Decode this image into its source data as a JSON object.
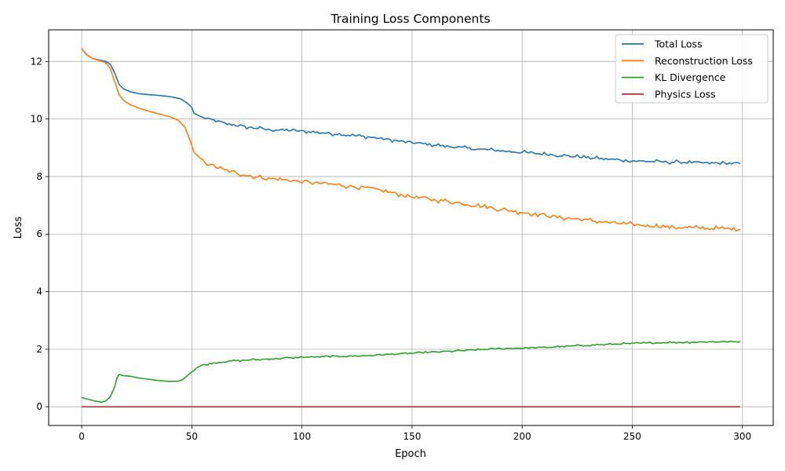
{
  "chart_data": {
    "type": "line",
    "title": "Training Loss Components",
    "xlabel": "Epoch",
    "ylabel": "Loss",
    "xlim": [
      -15,
      314
    ],
    "ylim": [
      -0.65,
      13.1
    ],
    "x_ticks": [
      0,
      50,
      100,
      150,
      200,
      250,
      300
    ],
    "y_ticks": [
      0,
      2,
      4,
      6,
      8,
      10,
      12
    ],
    "grid": true,
    "legend_position": "top-right",
    "x_range": [
      0,
      299
    ],
    "series": [
      {
        "name": "Total Loss",
        "color": "#1f77b4",
        "points": [
          [
            0,
            12.45
          ],
          [
            2,
            12.25
          ],
          [
            5,
            12.1
          ],
          [
            8,
            12.05
          ],
          [
            11,
            12.0
          ],
          [
            13,
            11.9
          ],
          [
            15,
            11.6
          ],
          [
            17,
            11.2
          ],
          [
            19,
            11.05
          ],
          [
            22,
            10.95
          ],
          [
            26,
            10.88
          ],
          [
            30,
            10.85
          ],
          [
            35,
            10.82
          ],
          [
            40,
            10.78
          ],
          [
            45,
            10.7
          ],
          [
            48,
            10.55
          ],
          [
            50,
            10.4
          ],
          [
            51,
            10.2
          ],
          [
            55,
            10.05
          ],
          [
            60,
            9.95
          ],
          [
            65,
            9.85
          ],
          [
            70,
            9.78
          ],
          [
            75,
            9.72
          ],
          [
            80,
            9.68
          ],
          [
            85,
            9.63
          ],
          [
            90,
            9.62
          ],
          [
            95,
            9.6
          ],
          [
            100,
            9.58
          ],
          [
            110,
            9.52
          ],
          [
            120,
            9.45
          ],
          [
            130,
            9.38
          ],
          [
            140,
            9.28
          ],
          [
            150,
            9.18
          ],
          [
            160,
            9.1
          ],
          [
            170,
            9.02
          ],
          [
            180,
            8.95
          ],
          [
            190,
            8.9
          ],
          [
            200,
            8.84
          ],
          [
            210,
            8.78
          ],
          [
            220,
            8.72
          ],
          [
            230,
            8.66
          ],
          [
            240,
            8.6
          ],
          [
            250,
            8.55
          ],
          [
            260,
            8.52
          ],
          [
            270,
            8.5
          ],
          [
            280,
            8.48
          ],
          [
            290,
            8.46
          ],
          [
            299,
            8.45
          ]
        ]
      },
      {
        "name": "Reconstruction Loss",
        "color": "#ff7f0e",
        "points": [
          [
            0,
            12.45
          ],
          [
            2,
            12.25
          ],
          [
            5,
            12.1
          ],
          [
            8,
            12.03
          ],
          [
            11,
            11.95
          ],
          [
            13,
            11.75
          ],
          [
            15,
            11.3
          ],
          [
            17,
            10.85
          ],
          [
            19,
            10.65
          ],
          [
            22,
            10.5
          ],
          [
            26,
            10.38
          ],
          [
            30,
            10.28
          ],
          [
            35,
            10.18
          ],
          [
            40,
            10.08
          ],
          [
            44,
            9.95
          ],
          [
            47,
            9.7
          ],
          [
            49,
            9.3
          ],
          [
            51,
            8.85
          ],
          [
            55,
            8.55
          ],
          [
            60,
            8.35
          ],
          [
            65,
            8.22
          ],
          [
            70,
            8.12
          ],
          [
            75,
            8.05
          ],
          [
            80,
            7.98
          ],
          [
            85,
            7.93
          ],
          [
            90,
            7.9
          ],
          [
            95,
            7.86
          ],
          [
            100,
            7.82
          ],
          [
            110,
            7.76
          ],
          [
            120,
            7.68
          ],
          [
            130,
            7.6
          ],
          [
            140,
            7.45
          ],
          [
            145,
            7.38
          ],
          [
            150,
            7.3
          ],
          [
            160,
            7.2
          ],
          [
            170,
            7.1
          ],
          [
            180,
            6.98
          ],
          [
            190,
            6.86
          ],
          [
            200,
            6.76
          ],
          [
            210,
            6.66
          ],
          [
            220,
            6.56
          ],
          [
            230,
            6.48
          ],
          [
            240,
            6.4
          ],
          [
            250,
            6.33
          ],
          [
            260,
            6.28
          ],
          [
            270,
            6.24
          ],
          [
            280,
            6.21
          ],
          [
            290,
            6.19
          ],
          [
            299,
            6.18
          ]
        ]
      },
      {
        "name": "KL Divergence",
        "color": "#2ca02c",
        "points": [
          [
            0,
            0.32
          ],
          [
            3,
            0.26
          ],
          [
            6,
            0.2
          ],
          [
            9,
            0.16
          ],
          [
            11,
            0.2
          ],
          [
            13,
            0.35
          ],
          [
            15,
            0.7
          ],
          [
            16,
            1.0
          ],
          [
            17,
            1.12
          ],
          [
            19,
            1.08
          ],
          [
            22,
            1.06
          ],
          [
            26,
            1.0
          ],
          [
            30,
            0.96
          ],
          [
            35,
            0.91
          ],
          [
            40,
            0.88
          ],
          [
            44,
            0.89
          ],
          [
            46,
            0.95
          ],
          [
            48,
            1.08
          ],
          [
            50,
            1.22
          ],
          [
            52,
            1.35
          ],
          [
            55,
            1.45
          ],
          [
            60,
            1.52
          ],
          [
            65,
            1.57
          ],
          [
            70,
            1.6
          ],
          [
            75,
            1.62
          ],
          [
            80,
            1.64
          ],
          [
            85,
            1.66
          ],
          [
            90,
            1.68
          ],
          [
            95,
            1.7
          ],
          [
            100,
            1.72
          ],
          [
            110,
            1.74
          ],
          [
            120,
            1.76
          ],
          [
            130,
            1.78
          ],
          [
            140,
            1.82
          ],
          [
            150,
            1.86
          ],
          [
            160,
            1.9
          ],
          [
            170,
            1.94
          ],
          [
            180,
            1.98
          ],
          [
            190,
            2.02
          ],
          [
            200,
            2.04
          ],
          [
            210,
            2.06
          ],
          [
            220,
            2.1
          ],
          [
            230,
            2.14
          ],
          [
            240,
            2.17
          ],
          [
            250,
            2.2
          ],
          [
            260,
            2.22
          ],
          [
            270,
            2.24
          ],
          [
            280,
            2.25
          ],
          [
            290,
            2.26
          ],
          [
            299,
            2.26
          ]
        ]
      },
      {
        "name": "Physics Loss",
        "color": "#d62728",
        "points": [
          [
            0,
            0.0
          ],
          [
            299,
            0.0
          ]
        ]
      }
    ]
  }
}
